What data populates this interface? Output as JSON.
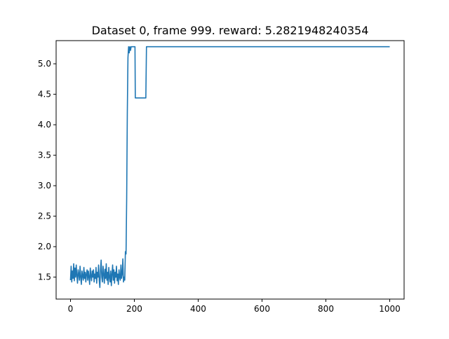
{
  "chart_data": {
    "type": "line",
    "title": "Dataset 0, frame 999. reward: 5.2821948240354",
    "xlabel": "",
    "ylabel": "",
    "xlim": [
      -45,
      1045
    ],
    "ylim": [
      1.14,
      5.38
    ],
    "xticks": [
      0,
      200,
      400,
      600,
      800,
      1000
    ],
    "yticks": [
      1.5,
      2.0,
      2.5,
      3.0,
      3.5,
      4.0,
      4.5,
      5.0
    ],
    "xtick_labels": [
      "0",
      "200",
      "400",
      "600",
      "800",
      "1000"
    ],
    "ytick_labels": [
      "1.5",
      "2.0",
      "2.5",
      "3.0",
      "3.5",
      "4.0",
      "4.5",
      "5.0"
    ],
    "grid": false,
    "legend": "none",
    "series": [
      {
        "color": "#1f77b4",
        "x": [
          0,
          2,
          4,
          6,
          8,
          10,
          12,
          14,
          16,
          18,
          20,
          22,
          24,
          26,
          28,
          30,
          32,
          34,
          36,
          38,
          40,
          42,
          44,
          46,
          48,
          50,
          52,
          54,
          56,
          58,
          60,
          62,
          64,
          66,
          68,
          70,
          72,
          74,
          76,
          78,
          80,
          82,
          84,
          86,
          88,
          90,
          92,
          94,
          96,
          98,
          100,
          102,
          104,
          106,
          108,
          110,
          112,
          114,
          116,
          118,
          120,
          122,
          124,
          126,
          128,
          130,
          132,
          134,
          136,
          138,
          140,
          142,
          144,
          146,
          148,
          150,
          152,
          154,
          156,
          158,
          160,
          162,
          164,
          166,
          168,
          170,
          172,
          174,
          176,
          178,
          180,
          182,
          184,
          186,
          188,
          190,
          192,
          194,
          196,
          198,
          200,
          202,
          203,
          210,
          220,
          230,
          236,
          238,
          240,
          300,
          400,
          500,
          600,
          700,
          800,
          900,
          1000
        ],
        "y": [
          1.45,
          1.68,
          1.42,
          1.6,
          1.48,
          1.72,
          1.44,
          1.65,
          1.5,
          1.7,
          1.52,
          1.4,
          1.62,
          1.55,
          1.45,
          1.68,
          1.5,
          1.38,
          1.6,
          1.52,
          1.45,
          1.66,
          1.48,
          1.58,
          1.42,
          1.55,
          1.62,
          1.45,
          1.6,
          1.5,
          1.38,
          1.65,
          1.52,
          1.44,
          1.6,
          1.5,
          1.62,
          1.42,
          1.55,
          1.48,
          1.66,
          1.4,
          1.58,
          1.5,
          1.7,
          1.45,
          1.33,
          1.62,
          1.78,
          1.5,
          1.42,
          1.68,
          1.55,
          1.4,
          1.63,
          1.48,
          1.72,
          1.45,
          1.58,
          1.38,
          1.66,
          1.5,
          1.42,
          1.6,
          1.36,
          1.55,
          1.7,
          1.45,
          1.62,
          1.4,
          1.58,
          1.5,
          1.68,
          1.44,
          1.55,
          1.38,
          1.62,
          1.5,
          1.45,
          1.7,
          1.48,
          1.55,
          1.8,
          1.42,
          1.5,
          1.45,
          1.92,
          1.88,
          2.8,
          4.2,
          5.1,
          5.28,
          5.18,
          5.28,
          5.22,
          5.28,
          5.28,
          5.28,
          5.28,
          5.28,
          5.28,
          5.28,
          4.44,
          4.44,
          4.44,
          4.44,
          4.44,
          5.28,
          5.28,
          5.28,
          5.28,
          5.28,
          5.28,
          5.28,
          5.28,
          5.28,
          5.28
        ]
      }
    ]
  }
}
